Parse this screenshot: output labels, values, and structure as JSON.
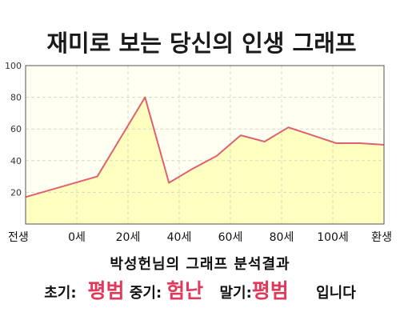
{
  "title": "재미로 보는 당신의 인생 그래프",
  "colors": {
    "plot_bg": "#fffff2",
    "fill": "#ffffc0",
    "line": "#e06070",
    "grid": "#d8d8c8",
    "highlight": "#e03a5a"
  },
  "chart_data": {
    "type": "area",
    "title": "재미로 보는 당신의 인생 그래프",
    "xlabel": "",
    "ylabel": "",
    "x_tick_labels": [
      "전생",
      "0세",
      "20세",
      "40세",
      "60세",
      "80세",
      "100세",
      "환생"
    ],
    "x": [
      -30,
      0,
      20,
      30,
      40,
      50,
      60,
      70,
      80,
      90,
      100,
      110,
      120
    ],
    "y": [
      17,
      30,
      80,
      26,
      35,
      43,
      56,
      52,
      61,
      56,
      51,
      51,
      50
    ],
    "ylim": [
      0,
      100
    ],
    "y_ticks": [
      20,
      40,
      60,
      80,
      100
    ],
    "grid": true
  },
  "summary": {
    "line1": "박성헌님의 그래프 분석결과",
    "early_label": "초기:",
    "early_value": "평범",
    "middle_label": "중기:",
    "middle_value": "험난",
    "late_label": "말기:",
    "late_value": "평범",
    "suffix": "입니다"
  }
}
